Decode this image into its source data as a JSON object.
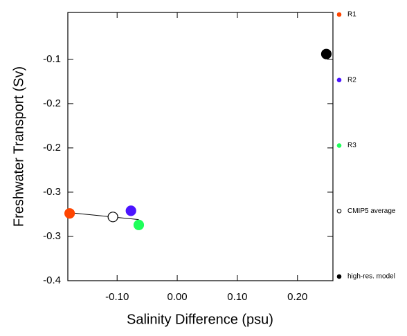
{
  "chart_data": {
    "type": "scatter",
    "x_label": "Salinity Difference (psu)",
    "y_label": "Freshwater Transport (Sv)",
    "xlim": [
      -0.182,
      0.259
    ],
    "ylim": [
      -0.4,
      -0.097
    ],
    "xticks": [
      {
        "value": -0.1,
        "label": "-0.10"
      },
      {
        "value": 0,
        "label": "0.00"
      },
      {
        "value": 0.1,
        "label": "0.10"
      },
      {
        "value": 0.2,
        "label": "0.20"
      }
    ],
    "yticks": [
      {
        "value": -0.15,
        "label": "-0.1"
      },
      {
        "value": -0.2,
        "label": "-0.2"
      },
      {
        "value": -0.25,
        "label": "-0.2"
      },
      {
        "value": -0.3,
        "label": "-0.3"
      },
      {
        "value": -0.35,
        "label": "-0.3"
      },
      {
        "value": -0.4,
        "label": "-0.4"
      }
    ],
    "series": [
      {
        "name": "R1",
        "color": "#ff4500",
        "filled": true,
        "x": [
          -0.179
        ],
        "values": [
          -0.324
        ]
      },
      {
        "name": "R2",
        "color": "#4b14ff",
        "filled": true,
        "x": [
          -0.077
        ],
        "values": [
          -0.321
        ]
      },
      {
        "name": "R3",
        "color": "#1eff5a",
        "filled": true,
        "x": [
          -0.064
        ],
        "values": [
          -0.337
        ]
      },
      {
        "name": "CMIP5 average",
        "color": "#000000",
        "filled": false,
        "x": [
          -0.107
        ],
        "values": [
          -0.328
        ]
      },
      {
        "name": "high-res. model",
        "color": "#000000",
        "filled": true,
        "x": [
          0.248
        ],
        "values": [
          -0.144
        ]
      }
    ],
    "trend_line": {
      "x": [
        -0.182,
        -0.064
      ],
      "values": [
        -0.323,
        -0.331
      ]
    }
  }
}
